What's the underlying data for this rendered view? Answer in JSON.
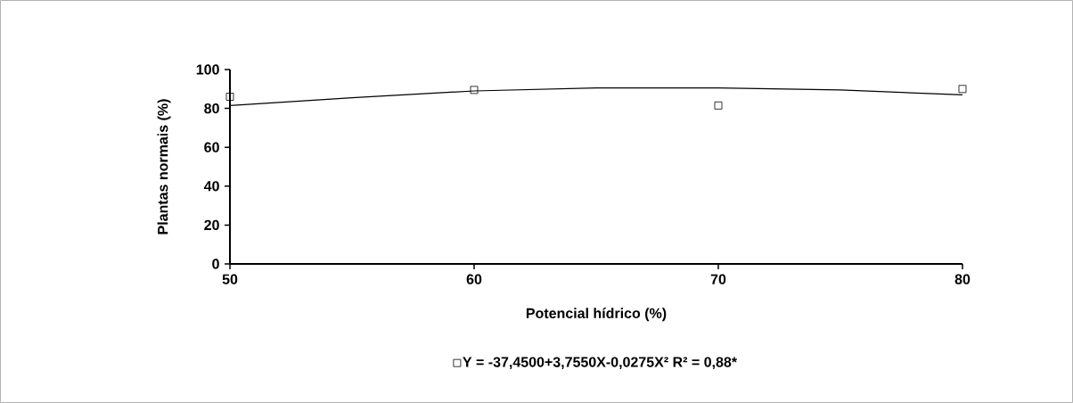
{
  "chart_data": {
    "type": "scatter",
    "xlabel": "Potencial hídrico (%)",
    "ylabel": "Plantas normais (%)",
    "xlim": [
      50,
      80
    ],
    "xticks": [
      50,
      60,
      70,
      80
    ],
    "ylim": [
      0,
      100
    ],
    "yticks": [
      0,
      20,
      40,
      60,
      80,
      100
    ],
    "grid": false,
    "legend": "bottom",
    "series": [
      {
        "name": "Y = -37,4500+3,7550X-0,0275X² R² = 0,88*",
        "color": "#000000",
        "marker": "square",
        "x": [
          50,
          60,
          70,
          80
        ],
        "values": [
          86,
          89.5,
          81.5,
          90
        ]
      },
      {
        "type": "line",
        "color": "#000000",
        "x": [
          50,
          55,
          60,
          65,
          70,
          75,
          80
        ],
        "values": [
          81.5,
          85.5,
          89,
          90.5,
          90.5,
          89.5,
          87
        ]
      }
    ]
  }
}
